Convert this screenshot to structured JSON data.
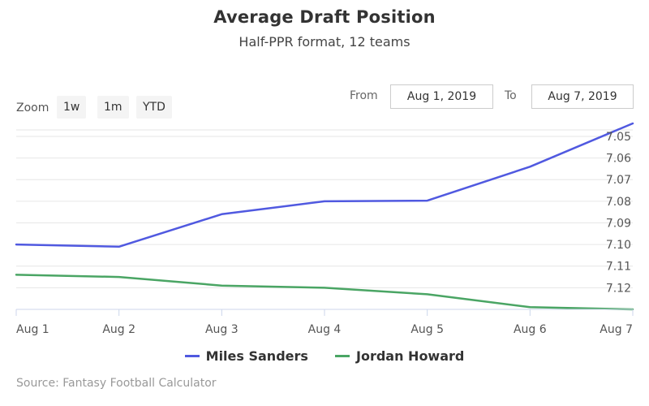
{
  "chart_data": {
    "type": "line",
    "title": "Average Draft Position",
    "subtitle": "Half-PPR format, 12 teams",
    "categories": [
      "Aug 1",
      "Aug 2",
      "Aug 3",
      "Aug 4",
      "Aug 5",
      "Aug 6",
      "Aug 7"
    ],
    "y_ticks": [
      "7.05",
      "7.06",
      "7.07",
      "7.08",
      "7.09",
      "7.10",
      "7.11",
      "7.12"
    ],
    "ylim": [
      7.047,
      7.13
    ],
    "y_reversed": true,
    "y_axis_side": "right",
    "grid": true,
    "legend_position": "bottom",
    "series": [
      {
        "name": "Miles Sanders",
        "color": "#5059e0",
        "values": [
          7.1,
          7.101,
          7.086,
          7.08,
          7.0797,
          7.064,
          7.044
        ]
      },
      {
        "name": "Jordan Howard",
        "color": "#4aa564",
        "values": [
          7.114,
          7.115,
          7.119,
          7.12,
          7.123,
          7.129,
          7.13
        ]
      }
    ]
  },
  "range_selector": {
    "zoom_label": "Zoom",
    "buttons": [
      "1w",
      "1m",
      "YTD"
    ],
    "from_label": "From",
    "from_value": "Aug 1, 2019",
    "to_label": "To",
    "to_value": "Aug 7, 2019"
  },
  "credits": "Source: Fantasy Football Calculator"
}
